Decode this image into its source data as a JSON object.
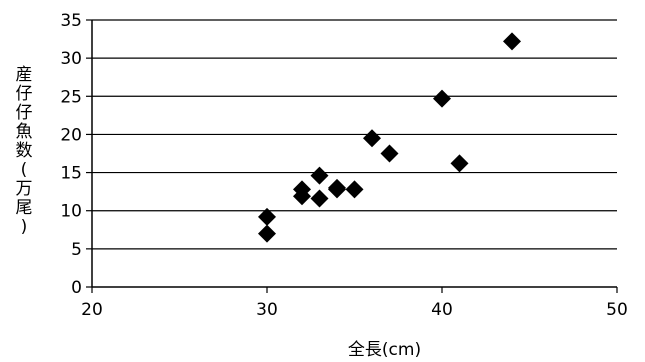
{
  "chart_data": {
    "type": "scatter",
    "title": "",
    "xlabel": "全長(cm)",
    "ylabel": "産仔仔魚数(万尾)",
    "xlim": [
      20,
      50
    ],
    "ylim": [
      0,
      35
    ],
    "x_ticks": [
      20,
      30,
      40,
      50
    ],
    "y_ticks": [
      0,
      5,
      10,
      15,
      20,
      25,
      30,
      35
    ],
    "grid": "horizontal",
    "legend": "none",
    "marker": "diamond",
    "marker_color": "#000000",
    "points": [
      {
        "x": 30,
        "y": 7.0
      },
      {
        "x": 30,
        "y": 9.2
      },
      {
        "x": 32,
        "y": 11.9
      },
      {
        "x": 32,
        "y": 12.8
      },
      {
        "x": 33,
        "y": 11.6
      },
      {
        "x": 33,
        "y": 14.6
      },
      {
        "x": 34,
        "y": 12.8
      },
      {
        "x": 34,
        "y": 13.0
      },
      {
        "x": 35,
        "y": 12.8
      },
      {
        "x": 36,
        "y": 19.5
      },
      {
        "x": 37,
        "y": 17.5
      },
      {
        "x": 40,
        "y": 24.7
      },
      {
        "x": 41,
        "y": 16.2
      },
      {
        "x": 44,
        "y": 32.2
      }
    ]
  }
}
